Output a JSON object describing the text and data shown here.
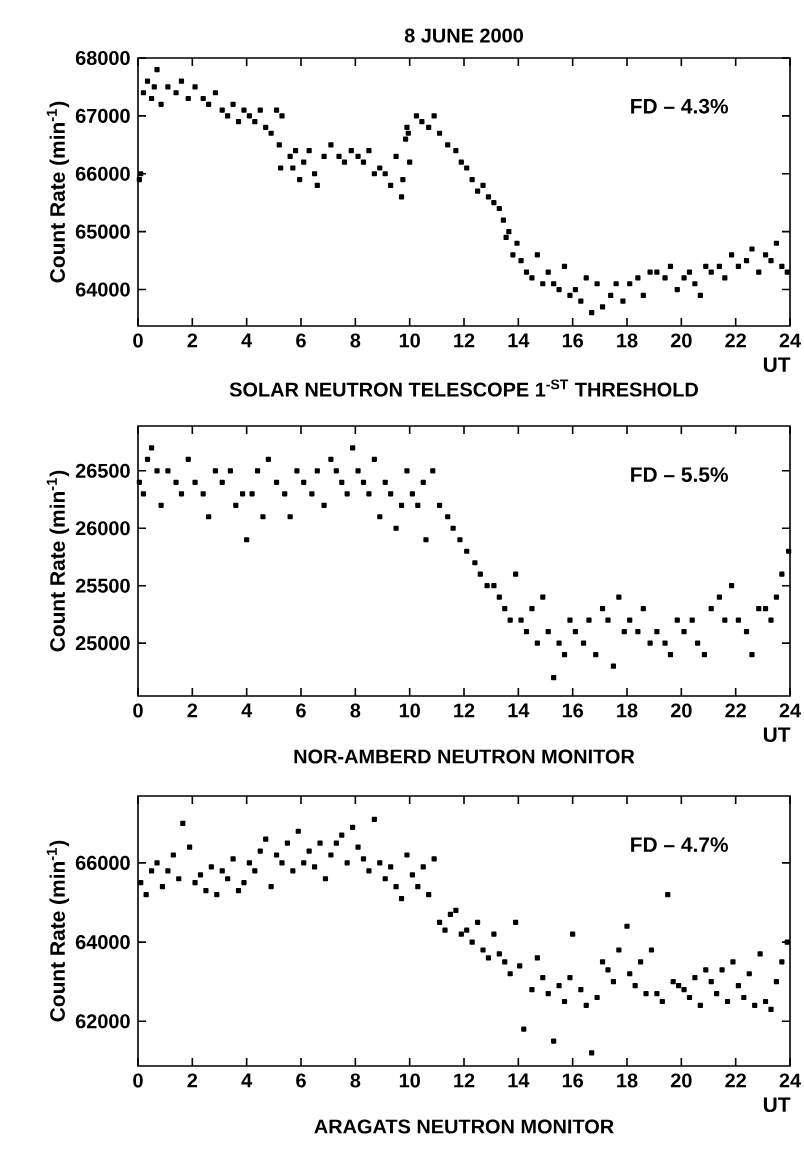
{
  "chart_data": [
    {
      "type": "scatter",
      "title": "8 JUNE 2000",
      "xlabel": "UT",
      "ylabel": "Count Rate (min$^{-1}$)",
      "marker": "square",
      "annotations": [
        "FD – 4.3%",
        "SOLAR NEUTRON TELESCOPE 1$^{-ST}$ THRESHOLD"
      ],
      "xlim": [
        0,
        24
      ],
      "xticks": [
        0,
        2,
        4,
        6,
        8,
        10,
        12,
        14,
        16,
        18,
        20,
        22,
        24
      ],
      "ylim": [
        63370,
        68000
      ],
      "yticks": [
        64000,
        65000,
        66000,
        67000,
        68000
      ],
      "series": [
        {
          "color": "#000000",
          "x": [
            0.05,
            0.1,
            0.2,
            0.35,
            0.5,
            0.6,
            0.7,
            0.85,
            1.1,
            1.4,
            1.6,
            1.85,
            2.1,
            2.4,
            2.6,
            2.85,
            3.1,
            3.3,
            3.5,
            3.7,
            3.9,
            4.1,
            4.3,
            4.5,
            4.7,
            4.9,
            5.1,
            5.2,
            5.25,
            5.3,
            5.6,
            5.7,
            5.8,
            5.95,
            6.1,
            6.3,
            6.5,
            6.6,
            6.85,
            7.1,
            7.4,
            7.6,
            7.85,
            8.1,
            8.3,
            8.5,
            8.7,
            8.9,
            9.1,
            9.3,
            9.5,
            9.7,
            9.75,
            9.85,
            9.9,
            9.95,
            10.0,
            10.25,
            10.45,
            10.7,
            10.9,
            11.1,
            11.4,
            11.7,
            11.9,
            12.1,
            12.3,
            12.5,
            12.7,
            12.9,
            13.1,
            13.3,
            13.45,
            13.55,
            13.65,
            13.8,
            13.95,
            14.1,
            14.3,
            14.5,
            14.7,
            14.9,
            15.1,
            15.3,
            15.5,
            15.7,
            15.9,
            16.1,
            16.3,
            16.5,
            16.7,
            16.9,
            17.1,
            17.4,
            17.6,
            17.85,
            18.1,
            18.4,
            18.6,
            18.85,
            19.1,
            19.4,
            19.6,
            19.85,
            20.1,
            20.3,
            20.5,
            20.7,
            20.9,
            21.1,
            21.4,
            21.6,
            21.85,
            22.1,
            22.4,
            22.6,
            22.85,
            23.1,
            23.3,
            23.5,
            23.7,
            23.9
          ],
          "values": [
            65900,
            66000,
            67400,
            67600,
            67300,
            67500,
            67800,
            67200,
            67500,
            67400,
            67600,
            67300,
            67500,
            67300,
            67200,
            67400,
            67100,
            67000,
            67200,
            66900,
            67100,
            67000,
            66900,
            67100,
            66800,
            66700,
            67100,
            66500,
            66100,
            67000,
            66300,
            66100,
            66400,
            65900,
            66200,
            66400,
            66000,
            65800,
            66300,
            66500,
            66300,
            66200,
            66400,
            66300,
            66200,
            66400,
            66000,
            66100,
            66000,
            65800,
            66300,
            65600,
            65900,
            66600,
            66800,
            66700,
            66200,
            67000,
            66900,
            66800,
            67000,
            66700,
            66500,
            66400,
            66200,
            66100,
            65900,
            65700,
            65800,
            65600,
            65500,
            65400,
            65200,
            64900,
            65000,
            64600,
            64800,
            64500,
            64300,
            64200,
            64600,
            64100,
            64300,
            64100,
            64000,
            64400,
            63900,
            64000,
            63800,
            64200,
            63600,
            64100,
            63700,
            63900,
            64100,
            63800,
            64100,
            64200,
            63900,
            64300,
            64300,
            64200,
            64400,
            64000,
            64200,
            64300,
            64100,
            63900,
            64400,
            64300,
            64400,
            64200,
            64600,
            64400,
            64500,
            64700,
            64300,
            64600,
            64500,
            64800,
            64400,
            64300
          ]
        }
      ]
    },
    {
      "type": "scatter",
      "xlabel": "UT",
      "ylabel": "Count Rate (min$^{-1}$)",
      "marker": "square",
      "annotations": [
        "FD – 5.5%",
        "NOR-AMBERD NEUTRON MONITOR"
      ],
      "xlim": [
        0,
        24
      ],
      "xticks": [
        0,
        2,
        4,
        6,
        8,
        10,
        12,
        14,
        16,
        18,
        20,
        22,
        24
      ],
      "ylim": [
        24540,
        26890
      ],
      "yticks": [
        25000,
        25500,
        26000,
        26500
      ],
      "series": [
        {
          "color": "#000000",
          "x": [
            0.05,
            0.2,
            0.35,
            0.5,
            0.7,
            0.85,
            1.1,
            1.4,
            1.6,
            1.85,
            2.1,
            2.4,
            2.6,
            2.85,
            3.1,
            3.4,
            3.6,
            3.85,
            4.0,
            4.2,
            4.4,
            4.6,
            4.8,
            5.1,
            5.4,
            5.6,
            5.85,
            6.1,
            6.4,
            6.6,
            6.85,
            7.1,
            7.3,
            7.5,
            7.7,
            7.9,
            8.1,
            8.3,
            8.5,
            8.7,
            8.9,
            9.1,
            9.3,
            9.5,
            9.7,
            9.9,
            10.1,
            10.3,
            10.5,
            10.6,
            10.85,
            11.1,
            11.4,
            11.6,
            11.85,
            12.1,
            12.4,
            12.6,
            12.85,
            13.1,
            13.3,
            13.5,
            13.7,
            13.9,
            14.1,
            14.3,
            14.5,
            14.7,
            14.9,
            15.1,
            15.3,
            15.5,
            15.7,
            15.9,
            16.1,
            16.4,
            16.6,
            16.85,
            17.1,
            17.3,
            17.5,
            17.7,
            17.9,
            18.1,
            18.4,
            18.6,
            18.85,
            19.1,
            19.4,
            19.6,
            19.85,
            20.1,
            20.4,
            20.6,
            20.85,
            21.1,
            21.4,
            21.6,
            21.85,
            22.1,
            22.4,
            22.6,
            22.85,
            23.1,
            23.3,
            23.5,
            23.7,
            23.95
          ],
          "values": [
            26400,
            26300,
            26600,
            26700,
            26500,
            26200,
            26500,
            26400,
            26300,
            26600,
            26400,
            26300,
            26100,
            26500,
            26400,
            26500,
            26200,
            26300,
            25900,
            26300,
            26500,
            26100,
            26600,
            26400,
            26300,
            26100,
            26500,
            26400,
            26300,
            26500,
            26200,
            26600,
            26500,
            26400,
            26300,
            26700,
            26500,
            26400,
            26300,
            26600,
            26100,
            26400,
            26300,
            26000,
            26200,
            26500,
            26300,
            26200,
            26400,
            25900,
            26500,
            26200,
            26100,
            26000,
            25900,
            25800,
            25700,
            25600,
            25500,
            25500,
            25400,
            25300,
            25200,
            25600,
            25200,
            25100,
            25300,
            25000,
            25400,
            25100,
            24700,
            25000,
            24900,
            25200,
            25100,
            25000,
            25200,
            24900,
            25300,
            25200,
            24800,
            25400,
            25100,
            25200,
            25100,
            25300,
            25000,
            25100,
            25000,
            24900,
            25200,
            25100,
            25200,
            25000,
            24900,
            25300,
            25400,
            25200,
            25500,
            25200,
            25100,
            24900,
            25300,
            25300,
            25200,
            25400,
            25600,
            25800
          ]
        }
      ]
    },
    {
      "type": "scatter",
      "xlabel": "UT",
      "ylabel": "Count Rate (min$^{-1}$)",
      "marker": "square",
      "annotations": [
        "FD – 4.7%",
        "ARAGATS NEUTRON MONITOR"
      ],
      "xlim": [
        0,
        24
      ],
      "xticks": [
        0,
        2,
        4,
        6,
        8,
        10,
        12,
        14,
        16,
        18,
        20,
        22,
        24
      ],
      "ylim": [
        60870,
        67690
      ],
      "yticks": [
        62000,
        64000,
        66000
      ],
      "series": [
        {
          "color": "#000000",
          "x": [
            0.1,
            0.3,
            0.5,
            0.7,
            0.9,
            1.1,
            1.3,
            1.5,
            1.65,
            1.9,
            2.1,
            2.3,
            2.5,
            2.7,
            2.9,
            3.1,
            3.3,
            3.5,
            3.7,
            3.9,
            4.1,
            4.3,
            4.5,
            4.7,
            4.9,
            5.1,
            5.3,
            5.5,
            5.7,
            5.9,
            6.1,
            6.3,
            6.5,
            6.7,
            6.9,
            7.1,
            7.3,
            7.5,
            7.7,
            7.9,
            8.1,
            8.3,
            8.5,
            8.7,
            8.9,
            9.1,
            9.3,
            9.5,
            9.7,
            9.9,
            10.1,
            10.3,
            10.5,
            10.7,
            10.9,
            11.1,
            11.3,
            11.5,
            11.7,
            11.9,
            12.1,
            12.3,
            12.5,
            12.7,
            12.9,
            13.1,
            13.3,
            13.5,
            13.7,
            13.9,
            14.05,
            14.2,
            14.5,
            14.7,
            14.9,
            15.1,
            15.3,
            15.5,
            15.7,
            15.9,
            16.0,
            16.3,
            16.5,
            16.7,
            16.9,
            17.1,
            17.3,
            17.5,
            17.7,
            18.0,
            18.1,
            18.3,
            18.5,
            18.7,
            18.9,
            19.1,
            19.3,
            19.5,
            19.7,
            19.9,
            20.1,
            20.3,
            20.5,
            20.7,
            20.9,
            21.1,
            21.3,
            21.5,
            21.7,
            21.9,
            22.1,
            22.3,
            22.5,
            22.7,
            22.9,
            23.1,
            23.3,
            23.5,
            23.7,
            23.9
          ],
          "values": [
            65500,
            65200,
            65800,
            66000,
            65400,
            65800,
            66200,
            65600,
            67000,
            66400,
            65500,
            65700,
            65300,
            65900,
            65200,
            65800,
            65600,
            66100,
            65300,
            65500,
            66000,
            65800,
            66300,
            66600,
            65400,
            66200,
            66000,
            66500,
            65800,
            66800,
            66000,
            66300,
            65900,
            66500,
            65600,
            66200,
            66500,
            66700,
            66000,
            66900,
            66400,
            66100,
            65800,
            67100,
            66000,
            65600,
            65900,
            65400,
            65100,
            66200,
            65700,
            65400,
            65900,
            65200,
            66100,
            64500,
            64300,
            64700,
            64800,
            64200,
            64300,
            64000,
            64500,
            63800,
            63600,
            64200,
            63700,
            63500,
            63200,
            64500,
            63400,
            61800,
            62800,
            63600,
            63100,
            62700,
            61500,
            62900,
            62500,
            63100,
            64200,
            62800,
            62400,
            61200,
            62600,
            63500,
            63300,
            63000,
            63800,
            64400,
            63200,
            62900,
            63500,
            62700,
            63800,
            62700,
            62500,
            65200,
            63000,
            62900,
            62800,
            62600,
            63100,
            62400,
            63300,
            63000,
            62700,
            63300,
            62500,
            63500,
            62900,
            62600,
            63200,
            62400,
            63700,
            62500,
            62300,
            63000,
            63500,
            64000
          ]
        }
      ]
    }
  ]
}
